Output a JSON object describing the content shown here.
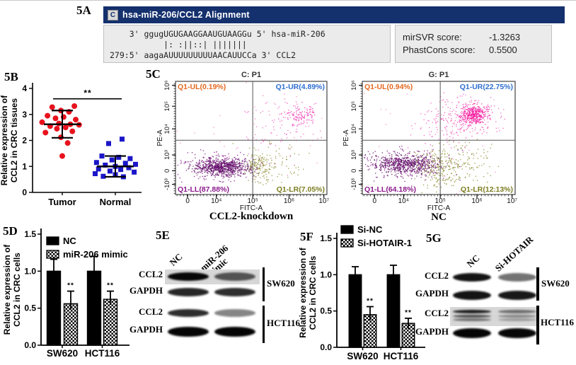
{
  "panel_a": {
    "label": "5A",
    "header_icon_letter": "C",
    "header_title": "hsa-miR-206/CCL2 Alignment",
    "align_line1": "    3' ggugUGUGAAGGAAUGUAAGGu 5' hsa-miR-206",
    "align_line2": "           |: :||::| |||||||",
    "align_line3": "279:5' aagaAUUUUUUUUUAACAUUCCa 3' CCL2",
    "mirsvr_label": "mirSVR score:",
    "mirsvr_value": "-1.3263",
    "phastcons_label": "PhastCons score:",
    "phastcons_value": "0.5500"
  },
  "panel_b": {
    "label": "5B"
  },
  "panel_c": {
    "label": "5C"
  },
  "panel_d": {
    "label": "5D"
  },
  "panel_e": {
    "label": "5E",
    "col1": "NC",
    "col2_line1": "miR-206",
    "col2_line2": "mimic",
    "rows": [
      {
        "label": "CCL2",
        "graybox": true,
        "multi": false,
        "bands": [
          0.97,
          0.62
        ]
      },
      {
        "label": "GAPDH",
        "graybox": false,
        "multi": false,
        "bands": [
          0.85,
          0.82
        ]
      },
      {
        "label": "CCL2",
        "graybox": false,
        "multi": false,
        "bands": [
          0.82,
          0.48
        ]
      },
      {
        "label": "GAPDH",
        "graybox": false,
        "multi": false,
        "bands": [
          0.98,
          0.98
        ]
      }
    ],
    "group1": "SW620",
    "group2": "HCT116"
  },
  "panel_f": {
    "label": "5F"
  },
  "panel_g": {
    "label": "5G",
    "col1": "NC",
    "col2": "Si-HOTAIR",
    "rows": [
      {
        "label": "CCL2",
        "graybox": false,
        "multi": false,
        "bands": [
          0.92,
          0.55
        ]
      },
      {
        "label": "GAPDH",
        "graybox": false,
        "multi": false,
        "bands": [
          0.92,
          0.9
        ]
      },
      {
        "label": "CCL2",
        "graybox": true,
        "multi": true,
        "bands": [
          0.88,
          0.5
        ]
      },
      {
        "label": "GAPDH",
        "graybox": false,
        "multi": false,
        "bands": [
          0.98,
          0.97
        ]
      }
    ],
    "group1": "SW620",
    "group2": "HCT116"
  },
  "chart_data": [
    {
      "id": "5B",
      "type": "scatter",
      "ylabel_line1": "Relative expression of",
      "ylabel_line2": "CCL2 in CRC tissues",
      "ylim": [
        0,
        4
      ],
      "yticks": [
        0,
        1,
        2,
        3,
        4
      ],
      "significance": "**",
      "sig_y": 3.6,
      "groups": [
        {
          "name": "Tumor",
          "marker": "circle",
          "color": "#e8121d",
          "mean": 2.62,
          "lo": 2.1,
          "hi": 3.15,
          "points": [
            [
              -0.15,
              3.28
            ],
            [
              0.18,
              3.32
            ],
            [
              -0.02,
              3.15
            ],
            [
              0.1,
              3.1
            ],
            [
              -0.22,
              2.95
            ],
            [
              0.02,
              2.9
            ],
            [
              -0.1,
              2.85
            ],
            [
              0.2,
              2.8
            ],
            [
              -0.3,
              2.7
            ],
            [
              -0.05,
              2.65
            ],
            [
              0.12,
              2.62
            ],
            [
              0.25,
              2.6
            ],
            [
              -0.18,
              2.55
            ],
            [
              0.05,
              2.5
            ],
            [
              -0.08,
              2.45
            ],
            [
              0.15,
              2.35
            ],
            [
              -0.25,
              2.3
            ],
            [
              -0.02,
              2.12
            ],
            [
              0.08,
              1.9
            ],
            [
              0.0,
              1.4
            ]
          ]
        },
        {
          "name": "Normal",
          "marker": "square",
          "color": "#1b16c8",
          "mean": 1.0,
          "lo": 0.6,
          "hi": 1.4,
          "points": [
            [
              0.1,
              2.05
            ],
            [
              -0.1,
              1.88
            ],
            [
              -0.2,
              1.4
            ],
            [
              0.05,
              1.35
            ],
            [
              0.22,
              1.3
            ],
            [
              -0.05,
              1.25
            ],
            [
              -0.28,
              1.15
            ],
            [
              0.15,
              1.12
            ],
            [
              0.3,
              1.08
            ],
            [
              -0.15,
              1.05
            ],
            [
              0.0,
              1.0
            ],
            [
              0.2,
              0.95
            ],
            [
              -0.25,
              0.9
            ],
            [
              0.08,
              0.88
            ],
            [
              -0.08,
              0.82
            ],
            [
              0.28,
              0.78
            ],
            [
              -0.3,
              0.72
            ],
            [
              0.0,
              0.68
            ],
            [
              -0.18,
              0.62
            ],
            [
              0.12,
              0.6
            ]
          ]
        }
      ]
    },
    {
      "id": "5C-left",
      "type": "flow-scatter",
      "seed": 77,
      "title": "C: P1",
      "caption": "CCL2-knockdown",
      "xlabel": "FITC-A",
      "ylabel": "PE-A",
      "xticks": [
        {
          "f": 0.08,
          "t": "0"
        },
        {
          "f": 0.27,
          "t": "10⁴"
        },
        {
          "f": 0.51,
          "t": "10⁵"
        },
        {
          "f": 0.75,
          "t": "10⁶"
        },
        {
          "f": 0.98,
          "t": "10⁷"
        }
      ],
      "yticks": [
        {
          "f": 0.09,
          "t": "-10³"
        },
        {
          "f": 0.21,
          "t": "0"
        },
        {
          "f": 0.35,
          "t": "10³"
        },
        {
          "f": 0.58,
          "t": "10⁴"
        },
        {
          "f": 0.78,
          "t": "10⁵"
        },
        {
          "f": 0.965,
          "t": "10⁶"
        }
      ],
      "divider": {
        "x": 0.51,
        "y": 0.48
      },
      "quadrants": [
        {
          "pos": "UL",
          "text": "Q1-UL(0.19%)",
          "color": "#e4681f"
        },
        {
          "pos": "UR",
          "text": "Q1-UR(4.89%)",
          "color": "#2e6fd2"
        },
        {
          "pos": "LL",
          "text": "Q1-LL(87.88%)",
          "color": "#8b1a8b"
        },
        {
          "pos": "LR",
          "text": "Q1-LR(7.05%)",
          "color": "#7d7d22"
        }
      ],
      "clusters": [
        {
          "n": 650,
          "cx": 0.3,
          "cy": 0.245,
          "sx": 0.085,
          "sy": 0.035,
          "color": "#5c0a63"
        },
        {
          "n": 250,
          "cx": 0.27,
          "cy": 0.25,
          "sx": 0.13,
          "sy": 0.06,
          "color": "#7a1080"
        },
        {
          "n": 120,
          "cx": 0.55,
          "cy": 0.25,
          "sx": 0.045,
          "sy": 0.06,
          "color": "#8b8b2f"
        },
        {
          "n": 90,
          "cx": 0.66,
          "cy": 0.27,
          "sx": 0.1,
          "sy": 0.1,
          "color": "#8b8b2f"
        },
        {
          "n": 110,
          "cx": 0.82,
          "cy": 0.7,
          "sx": 0.055,
          "sy": 0.05,
          "color": "#ef2fb0"
        },
        {
          "n": 90,
          "cx": 0.68,
          "cy": 0.62,
          "sx": 0.13,
          "sy": 0.12,
          "color": "#f060c0"
        },
        {
          "n": 45,
          "cx": 0.5,
          "cy": 0.5,
          "sx": 0.3,
          "sy": 0.25,
          "color": "#f080c8"
        }
      ]
    },
    {
      "id": "5C-right",
      "type": "flow-scatter",
      "seed": 913,
      "title": "G: P1",
      "caption": "NC",
      "xlabel": "FITC-A",
      "ylabel": "PE-A",
      "xticks": [
        {
          "f": 0.08,
          "t": "0"
        },
        {
          "f": 0.27,
          "t": "10⁴"
        },
        {
          "f": 0.51,
          "t": "10⁵"
        },
        {
          "f": 0.75,
          "t": "10⁶"
        },
        {
          "f": 0.98,
          "t": "10⁷"
        }
      ],
      "yticks": [
        {
          "f": 0.09,
          "t": "-10³"
        },
        {
          "f": 0.21,
          "t": "0"
        },
        {
          "f": 0.35,
          "t": "10³"
        },
        {
          "f": 0.58,
          "t": "10⁴"
        },
        {
          "f": 0.78,
          "t": "10⁵"
        },
        {
          "f": 0.965,
          "t": "10⁶"
        }
      ],
      "divider": {
        "x": 0.51,
        "y": 0.48
      },
      "quadrants": [
        {
          "pos": "UL",
          "text": "Q1-UL(0.94%)",
          "color": "#e4681f"
        },
        {
          "pos": "UR",
          "text": "Q1-UR(22.75%)",
          "color": "#2e6fd2"
        },
        {
          "pos": "LL",
          "text": "Q1-LL(64.18%)",
          "color": "#8b1a8b"
        },
        {
          "pos": "LR",
          "text": "Q1-LR(12.13%)",
          "color": "#7d7d22"
        }
      ],
      "clusters": [
        {
          "n": 600,
          "cx": 0.28,
          "cy": 0.27,
          "sx": 0.1,
          "sy": 0.045,
          "color": "#5c0a63"
        },
        {
          "n": 200,
          "cx": 0.3,
          "cy": 0.27,
          "sx": 0.15,
          "sy": 0.07,
          "color": "#7a1080"
        },
        {
          "n": 170,
          "cx": 0.52,
          "cy": 0.23,
          "sx": 0.08,
          "sy": 0.08,
          "color": "#8b8b2f"
        },
        {
          "n": 140,
          "cx": 0.62,
          "cy": 0.3,
          "sx": 0.12,
          "sy": 0.1,
          "color": "#8b8b2f"
        },
        {
          "n": 380,
          "cx": 0.73,
          "cy": 0.71,
          "sx": 0.045,
          "sy": 0.04,
          "color": "#f5189e"
        },
        {
          "n": 230,
          "cx": 0.63,
          "cy": 0.66,
          "sx": 0.14,
          "sy": 0.1,
          "color": "#ef4fb5"
        },
        {
          "n": 60,
          "cx": 0.5,
          "cy": 0.55,
          "sx": 0.28,
          "sy": 0.22,
          "color": "#f080c8"
        }
      ]
    },
    {
      "id": "5D",
      "type": "bar",
      "ylabel_line1": "Relative expression of",
      "ylabel_line2": "CCL2 in CRC cells",
      "ylim": [
        0,
        1.5
      ],
      "yticks": [
        "0.0",
        "0.5",
        "1.0",
        "1.5"
      ],
      "categories": [
        "SW620",
        "HCT116"
      ],
      "series": [
        {
          "name": "NC",
          "pattern": "solid",
          "values": [
            1.0,
            1.0
          ],
          "errors": [
            0.16,
            0.2
          ],
          "sig": [
            "",
            ""
          ]
        },
        {
          "name": "miR-206 mimic",
          "pattern": "checker",
          "values": [
            0.56,
            0.62
          ],
          "errors": [
            0.17,
            0.11
          ],
          "sig": [
            "**",
            "**"
          ]
        }
      ]
    },
    {
      "id": "5F",
      "type": "bar",
      "ylabel_line1": "Relative expression of",
      "ylabel_line2": "CCL2 in CRC cells",
      "ylim": [
        0,
        1.5
      ],
      "yticks": [
        "0.0",
        "0.5",
        "1.0",
        "1.5"
      ],
      "categories": [
        "SW620",
        "HCT116"
      ],
      "series": [
        {
          "name": "Si-NC",
          "pattern": "solid",
          "values": [
            1.0,
            1.0
          ],
          "errors": [
            0.11,
            0.13
          ],
          "sig": [
            "",
            ""
          ]
        },
        {
          "name": "Si-HOTAIR-1",
          "pattern": "checker",
          "values": [
            0.45,
            0.33
          ],
          "errors": [
            0.11,
            0.07
          ],
          "sig": [
            "**",
            "**"
          ]
        }
      ]
    }
  ]
}
